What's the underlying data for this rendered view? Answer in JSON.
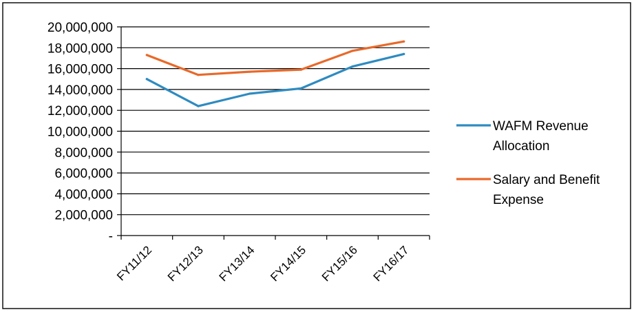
{
  "chart_data": {
    "type": "line",
    "categories": [
      "FY11/12",
      "FY12/13",
      "FY13/14",
      "FY14/15",
      "FY15/16",
      "FY16/17"
    ],
    "series": [
      {
        "name": "WAFM Revenue Allocation",
        "name_lines": [
          "WAFM Revenue",
          "Allocation"
        ],
        "color": "#2E8BC0",
        "values": [
          15000000,
          12400000,
          13600000,
          14100000,
          16200000,
          17400000
        ]
      },
      {
        "name": "Salary and Benefit Expense",
        "name_lines": [
          "Salary and Benefit",
          "Expense"
        ],
        "color": "#E8692A",
        "values": [
          17300000,
          15400000,
          15700000,
          15900000,
          17700000,
          18600000
        ]
      }
    ],
    "ylim": [
      0,
      20000000
    ],
    "yticks": [
      0,
      2000000,
      4000000,
      6000000,
      8000000,
      10000000,
      12000000,
      14000000,
      16000000,
      18000000,
      20000000
    ],
    "ytick_labels": [
      "-",
      "2,000,000",
      "4,000,000",
      "6,000,000",
      "8,000,000",
      "10,000,000",
      "12,000,000",
      "14,000,000",
      "16,000,000",
      "18,000,000",
      "20,000,000"
    ],
    "grid": true,
    "legend_position": "right"
  }
}
